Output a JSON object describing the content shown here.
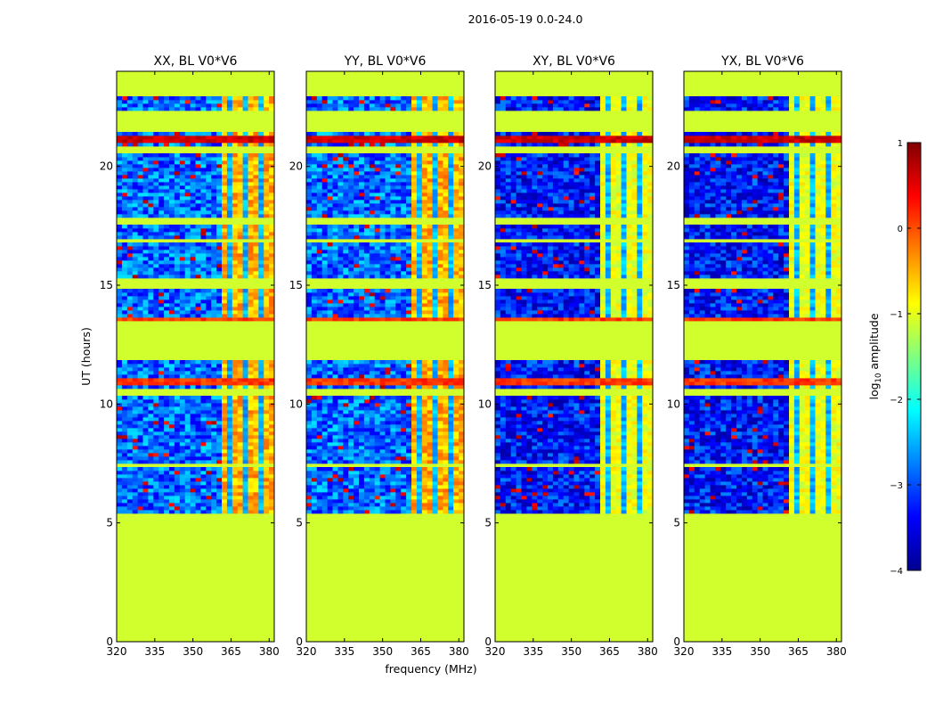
{
  "figure_title": "2016-05-19 0.0-24.0",
  "chart_data": [
    {
      "type": "heatmap",
      "title": "XX, BL V0*V6",
      "xlabel": "frequency (MHz)",
      "ylabel": "UT (hours)",
      "xlim": [
        320,
        382
      ],
      "ylim": [
        0,
        24
      ],
      "xticks": [
        320,
        335,
        350,
        365,
        380
      ],
      "yticks": [
        0,
        5,
        10,
        15,
        20
      ]
    },
    {
      "type": "heatmap",
      "title": "YY, BL V0*V6",
      "xlabel": "frequency (MHz)",
      "ylabel": "UT (hours)",
      "xlim": [
        320,
        382
      ],
      "ylim": [
        0,
        24
      ],
      "xticks": [
        320,
        335,
        350,
        365,
        380
      ],
      "yticks": [
        0,
        5,
        10,
        15,
        20
      ]
    },
    {
      "type": "heatmap",
      "title": "XY, BL V0*V6",
      "xlabel": "frequency (MHz)",
      "ylabel": "UT (hours)",
      "xlim": [
        320,
        382
      ],
      "ylim": [
        0,
        24
      ],
      "xticks": [
        320,
        335,
        350,
        365,
        380
      ],
      "yticks": [
        0,
        5,
        10,
        15,
        20
      ]
    },
    {
      "type": "heatmap",
      "title": "YX, BL V0*V6",
      "xlabel": "frequency (MHz)",
      "ylabel": "UT (hours)",
      "xlim": [
        320,
        382
      ],
      "ylim": [
        0,
        24
      ],
      "xticks": [
        320,
        335,
        350,
        365,
        380
      ],
      "yticks": [
        0,
        5,
        10,
        15,
        20
      ]
    }
  ],
  "colorbar": {
    "label": "log10 amplitude",
    "label_main": "log",
    "label_sub": "10",
    "label_rest": " amplitude",
    "range": [
      -4,
      1
    ],
    "ticks": [
      "1",
      "0",
      "−1",
      "−2",
      "−3",
      "−4"
    ],
    "colors": [
      "#00008f",
      "#0000ff",
      "#0080ff",
      "#00ffff",
      "#80ff80",
      "#ffff00",
      "#ff8000",
      "#ff0000",
      "#800000"
    ]
  },
  "shared_xlabel": "frequency (MHz)",
  "shared_ylabel": "UT (hours)",
  "heatmap_features": {
    "masked_value": -1.1,
    "masked_color": "#99ff55",
    "masked_ut_ranges": [
      [
        0,
        5.4
      ],
      [
        7.4,
        7.55
      ],
      [
        10.4,
        10.7
      ],
      [
        11.8,
        13.5
      ],
      [
        14.8,
        15.3
      ],
      [
        16.8,
        17.0
      ],
      [
        17.5,
        17.9
      ],
      [
        20.5,
        20.9
      ],
      [
        21.5,
        22.3
      ],
      [
        23.0,
        24
      ]
    ],
    "strong_ut_bands": [
      [
        10.85,
        11.1,
        0.1
      ],
      [
        13.45,
        13.6,
        0.1
      ],
      [
        20.95,
        21.25,
        0.6
      ]
    ],
    "high_freq_block_mhz": [
      361,
      382
    ],
    "dominant_low_value": -3
  }
}
